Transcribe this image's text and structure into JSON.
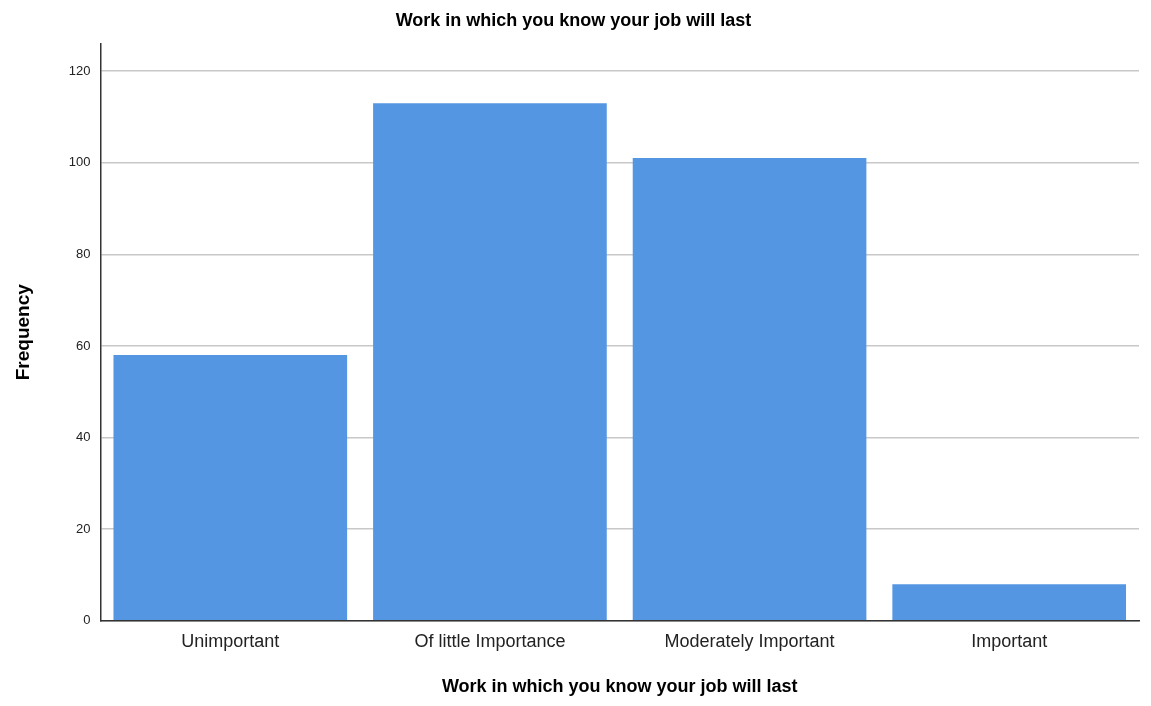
{
  "chart_data": {
    "type": "bar",
    "title": "Work in which you know your job will last",
    "xlabel": "Work in which you know your job will last",
    "ylabel": "Frequency",
    "categories": [
      "Unimportant",
      "Of little Importance",
      "Moderately Important",
      "Important"
    ],
    "values": [
      58,
      113,
      101,
      8
    ],
    "color": "#5596e3",
    "ylim": [
      0,
      126
    ],
    "yticks": [
      0,
      20,
      40,
      60,
      80,
      100,
      120
    ],
    "grid": "y",
    "legend": false
  }
}
